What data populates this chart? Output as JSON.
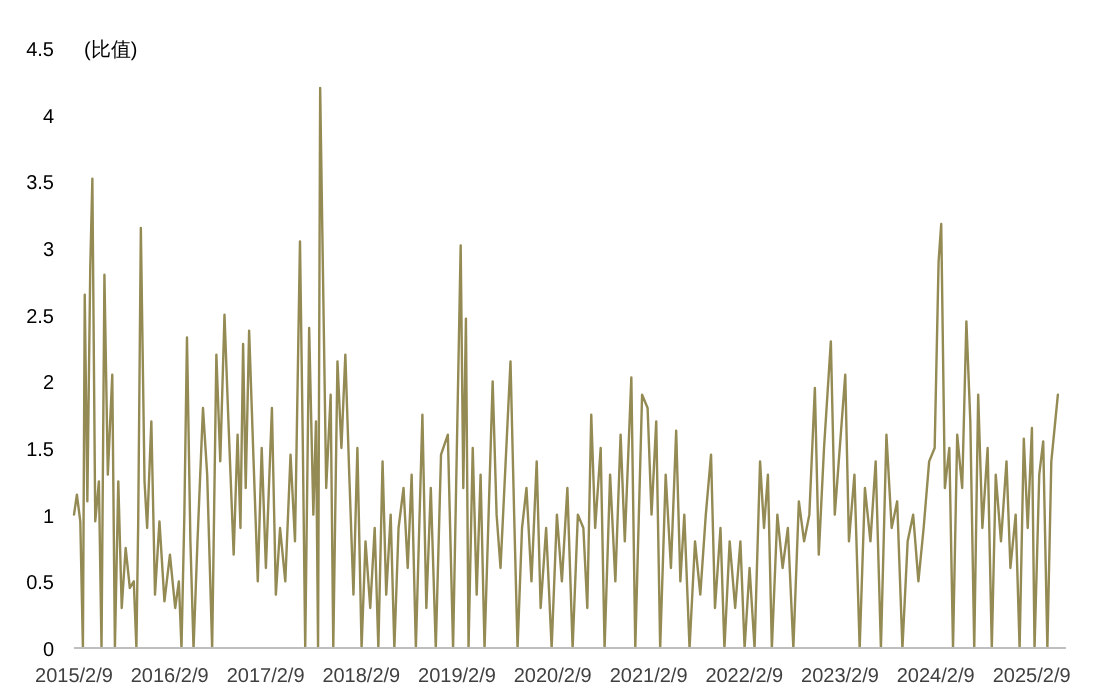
{
  "chart_data": {
    "type": "line",
    "ylabel": "(比值)",
    "color": "#948a54",
    "xlim": [
      "2015-02-09",
      "2025-06-20"
    ],
    "xticks": [
      {
        "value": "2015-02-09",
        "label": "2015/2/9"
      },
      {
        "value": "2016-02-09",
        "label": "2016/2/9"
      },
      {
        "value": "2017-02-09",
        "label": "2017/2/9"
      },
      {
        "value": "2018-02-09",
        "label": "2018/2/9"
      },
      {
        "value": "2019-02-09",
        "label": "2019/2/9"
      },
      {
        "value": "2020-02-09",
        "label": "2020/2/9"
      },
      {
        "value": "2021-02-09",
        "label": "2021/2/9"
      },
      {
        "value": "2022-02-09",
        "label": "2022/2/9"
      },
      {
        "value": "2023-02-09",
        "label": "2023/2/9"
      },
      {
        "value": "2024-02-09",
        "label": "2024/2/9"
      },
      {
        "value": "2025-02-09",
        "label": "2025/2/9"
      }
    ],
    "ylim": [
      0,
      4.5
    ],
    "yticks": [
      0,
      0.5,
      1,
      1.5,
      2,
      2.5,
      3,
      3.5,
      4,
      4.5
    ],
    "x": [
      "2015-02-09",
      "2015-02-20",
      "2015-03-05",
      "2015-03-15",
      "2015-03-22",
      "2015-04-01",
      "2015-04-12",
      "2015-04-20",
      "2015-05-01",
      "2015-05-15",
      "2015-05-25",
      "2015-06-05",
      "2015-06-18",
      "2015-07-05",
      "2015-07-15",
      "2015-07-28",
      "2015-08-10",
      "2015-08-25",
      "2015-09-10",
      "2015-09-25",
      "2015-10-05",
      "2015-10-12",
      "2015-10-22",
      "2015-11-05",
      "2015-11-15",
      "2015-12-01",
      "2015-12-15",
      "2016-01-01",
      "2016-01-20",
      "2016-02-10",
      "2016-03-01",
      "2016-03-15",
      "2016-03-25",
      "2016-04-05",
      "2016-04-15",
      "2016-04-28",
      "2016-05-10",
      "2016-05-25",
      "2016-06-15",
      "2016-07-01",
      "2016-07-20",
      "2016-08-05",
      "2016-08-20",
      "2016-09-05",
      "2016-09-20",
      "2016-10-10",
      "2016-10-25",
      "2016-11-05",
      "2016-11-15",
      "2016-11-25",
      "2016-12-08",
      "2016-12-25",
      "2017-01-10",
      "2017-01-25",
      "2017-02-10",
      "2017-03-05",
      "2017-03-20",
      "2017-04-05",
      "2017-04-25",
      "2017-05-15",
      "2017-06-01",
      "2017-06-20",
      "2017-07-01",
      "2017-07-10",
      "2017-07-25",
      "2017-08-10",
      "2017-08-20",
      "2017-08-28",
      "2017-09-05",
      "2017-09-15",
      "2017-09-28",
      "2017-10-15",
      "2017-10-25",
      "2017-11-10",
      "2017-11-25",
      "2017-12-10",
      "2017-12-25",
      "2018-01-10",
      "2018-01-25",
      "2018-02-10",
      "2018-02-25",
      "2018-03-15",
      "2018-04-01",
      "2018-04-15",
      "2018-05-01",
      "2018-05-15",
      "2018-06-01",
      "2018-06-15",
      "2018-07-01",
      "2018-07-20",
      "2018-08-05",
      "2018-08-20",
      "2018-09-05",
      "2018-09-30",
      "2018-10-15",
      "2018-11-01",
      "2018-11-20",
      "2018-12-10",
      "2019-01-05",
      "2019-01-25",
      "2019-02-23",
      "2019-03-05",
      "2019-03-15",
      "2019-03-25",
      "2019-04-10",
      "2019-04-25",
      "2019-05-10",
      "2019-05-25",
      "2019-06-25",
      "2019-07-10",
      "2019-07-25",
      "2019-09-01",
      "2019-09-15",
      "2019-09-28",
      "2019-10-15",
      "2019-11-01",
      "2019-11-20",
      "2019-12-10",
      "2019-12-25",
      "2020-01-15",
      "2020-02-05",
      "2020-02-25",
      "2020-03-15",
      "2020-04-05",
      "2020-04-25",
      "2020-05-15",
      "2020-06-05",
      "2020-06-20",
      "2020-07-05",
      "2020-07-20",
      "2020-08-10",
      "2020-08-25",
      "2020-09-15",
      "2020-10-05",
      "2020-10-25",
      "2020-11-10",
      "2020-12-05",
      "2020-12-20",
      "2021-01-15",
      "2021-02-05",
      "2021-02-20",
      "2021-03-10",
      "2021-03-25",
      "2021-04-15",
      "2021-05-05",
      "2021-05-25",
      "2021-06-10",
      "2021-06-25",
      "2021-07-15",
      "2021-08-05",
      "2021-08-25",
      "2021-09-15",
      "2021-10-05",
      "2021-10-20",
      "2021-11-10",
      "2021-11-25",
      "2021-12-15",
      "2022-01-05",
      "2022-01-25",
      "2022-02-10",
      "2022-03-01",
      "2022-03-20",
      "2022-04-10",
      "2022-04-25",
      "2022-05-10",
      "2022-05-25",
      "2022-06-15",
      "2022-07-05",
      "2022-07-25",
      "2022-08-15",
      "2022-09-05",
      "2022-09-25",
      "2022-10-15",
      "2022-11-05",
      "2022-11-20",
      "2022-12-10",
      "2023-01-05",
      "2023-01-20",
      "2023-03-01",
      "2023-03-15",
      "2023-04-05",
      "2023-04-25",
      "2023-05-15",
      "2023-06-05",
      "2023-06-25",
      "2023-07-15",
      "2023-08-05",
      "2023-08-25",
      "2023-09-15",
      "2023-10-05",
      "2023-10-25",
      "2023-11-15",
      "2023-12-05",
      "2023-12-25",
      "2024-01-15",
      "2024-02-05",
      "2024-02-20",
      "2024-03-01",
      "2024-03-15",
      "2024-04-01",
      "2024-04-15",
      "2024-05-01",
      "2024-05-20",
      "2024-06-05",
      "2024-06-20",
      "2024-07-05",
      "2024-07-20",
      "2024-08-05",
      "2024-08-25",
      "2024-09-10",
      "2024-09-25",
      "2024-10-15",
      "2024-11-05",
      "2024-11-20",
      "2024-12-10",
      "2024-12-25",
      "2025-01-10",
      "2025-01-25",
      "2025-02-10",
      "2025-02-20",
      "2025-03-10",
      "2025-03-25",
      "2025-04-10",
      "2025-04-25",
      "2025-05-20"
    ],
    "values": [
      1.0,
      1.15,
      0.95,
      0,
      2.65,
      1.1,
      2.85,
      3.52,
      0.95,
      1.25,
      0,
      2.8,
      1.3,
      2.05,
      0,
      1.25,
      0.3,
      0.75,
      0.45,
      0.5,
      0,
      0.95,
      3.15,
      1.25,
      0.9,
      1.7,
      0.4,
      0.95,
      0.35,
      0.7,
      0.3,
      0.5,
      0,
      1.0,
      2.33,
      0.8,
      0,
      0.8,
      1.8,
      1.3,
      0,
      2.2,
      1.4,
      2.5,
      1.7,
      0.7,
      1.6,
      0.9,
      2.28,
      1.2,
      2.38,
      1.4,
      0.5,
      1.5,
      0.6,
      1.8,
      0.4,
      0.9,
      0.5,
      1.45,
      0.8,
      3.05,
      1.5,
      0,
      2.4,
      1.0,
      1.7,
      0,
      4.2,
      2.9,
      1.2,
      1.9,
      0,
      2.15,
      1.5,
      2.2,
      1.3,
      0.4,
      1.5,
      0,
      0.8,
      0.3,
      0.9,
      0,
      1.4,
      0.4,
      1.0,
      0,
      0.9,
      1.2,
      0.6,
      1.3,
      0,
      1.75,
      0.3,
      1.2,
      0,
      1.45,
      1.6,
      0,
      3.02,
      1.2,
      2.47,
      0,
      1.5,
      0.4,
      1.3,
      0,
      2.0,
      1.0,
      0.6,
      2.15,
      1.0,
      0,
      0.9,
      1.2,
      0.5,
      1.4,
      0.3,
      0.9,
      0,
      1.0,
      0.5,
      1.2,
      0,
      1.0,
      0.9,
      0.3,
      1.75,
      0.9,
      1.5,
      0,
      1.3,
      0.5,
      1.6,
      0.8,
      2.03,
      0,
      1.9,
      1.8,
      1.0,
      1.7,
      0,
      1.3,
      0.6,
      1.63,
      0.5,
      1.0,
      0,
      0.8,
      0.4,
      1.0,
      1.45,
      0.3,
      0.9,
      0,
      0.8,
      0.3,
      0.8,
      0,
      0.6,
      0,
      1.4,
      0.9,
      1.3,
      0,
      1.0,
      0.6,
      0.9,
      0,
      1.1,
      0.8,
      1.0,
      1.95,
      0.7,
      1.5,
      2.3,
      1.0,
      2.05,
      0.8,
      1.3,
      0,
      1.2,
      0.8,
      1.4,
      0,
      1.6,
      0.9,
      1.1,
      0,
      0.8,
      1.0,
      0.5,
      0.9,
      1.4,
      1.5,
      2.9,
      3.18,
      1.2,
      1.5,
      0,
      1.6,
      1.2,
      2.45,
      1.7,
      0,
      1.9,
      0.9,
      1.5,
      0,
      1.3,
      0.8,
      1.4,
      0.6,
      1.0,
      0,
      1.57,
      0.9,
      1.65,
      0,
      1.3,
      1.55,
      0,
      1.4,
      1.9
    ]
  }
}
